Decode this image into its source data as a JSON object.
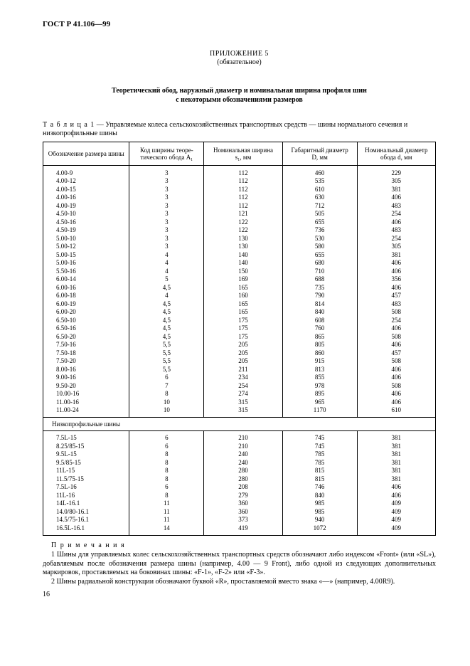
{
  "doc_id": "ГОСТ Р 41.106—99",
  "appendix_title": "ПРИЛОЖЕНИЕ 5",
  "appendix_sub": "(обязательное)",
  "main_title_l1": "Теоретический обод, наружный диаметр и номинальная ширина профиля шин",
  "main_title_l2": "с некоторыми обозначениями размеров",
  "table_label": "Т а б л и ц а  1",
  "table_caption": " — Управляемые колеса сельскохозяйственных транспортных средств — шины нормального сечения и низкопрофильные шины",
  "columns": [
    "Обозначение размера шины",
    "Код ширины теоре-\nтического обода A₁",
    "Номинальная ширина\ns₁, мм",
    "Габаритный диаметр\nD, мм",
    "Номинальный диаметр\nобода d, мм"
  ],
  "rows_top": [
    [
      "4.00-9",
      "3",
      "112",
      "460",
      "229"
    ],
    [
      "4.00-12",
      "3",
      "112",
      "535",
      "305"
    ],
    [
      "4.00-15",
      "3",
      "112",
      "610",
      "381"
    ],
    [
      "4.00-16",
      "3",
      "112",
      "630",
      "406"
    ],
    [
      "4.00-19",
      "3",
      "112",
      "712",
      "483"
    ],
    [
      "4.50-10",
      "3",
      "121",
      "505",
      "254"
    ],
    [
      "4.50-16",
      "3",
      "122",
      "655",
      "406"
    ],
    [
      "4.50-19",
      "3",
      "122",
      "736",
      "483"
    ],
    [
      "5.00-10",
      "3",
      "130",
      "530",
      "254"
    ],
    [
      "5.00-12",
      "3",
      "130",
      "580",
      "305"
    ],
    [
      "5.00-15",
      "4",
      "140",
      "655",
      "381"
    ],
    [
      "5.00-16",
      "4",
      "140",
      "680",
      "406"
    ],
    [
      "5.50-16",
      "4",
      "150",
      "710",
      "406"
    ],
    [
      "6.00-14",
      "5",
      "169",
      "688",
      "356"
    ],
    [
      "6.00-16",
      "4,5",
      "165",
      "735",
      "406"
    ],
    [
      "6.00-18",
      "4",
      "160",
      "790",
      "457"
    ],
    [
      "6.00-19",
      "4,5",
      "165",
      "814",
      "483"
    ],
    [
      "6.00-20",
      "4,5",
      "165",
      "840",
      "508"
    ],
    [
      "6.50-10",
      "4,5",
      "175",
      "608",
      "254"
    ],
    [
      "6.50-16",
      "4,5",
      "175",
      "760",
      "406"
    ],
    [
      "6.50-20",
      "4,5",
      "175",
      "865",
      "508"
    ],
    [
      "7.50-16",
      "5,5",
      "205",
      "805",
      "406"
    ],
    [
      "7.50-18",
      "5,5",
      "205",
      "860",
      "457"
    ],
    [
      "7.50-20",
      "5,5",
      "205",
      "915",
      "508"
    ],
    [
      "8.00-16",
      "5,5",
      "211",
      "813",
      "406"
    ],
    [
      "9.00-16",
      "6",
      "234",
      "855",
      "406"
    ],
    [
      "9.50-20",
      "7",
      "254",
      "978",
      "508"
    ],
    [
      "10.00-16",
      "8",
      "274",
      "895",
      "406"
    ],
    [
      "11.00-16",
      "10",
      "315",
      "965",
      "406"
    ],
    [
      "11.00-24",
      "10",
      "315",
      "1170",
      "610"
    ]
  ],
  "section_label": "Низкопрофильные шины",
  "rows_bot": [
    [
      "7.5L-15",
      "6",
      "210",
      "745",
      "381"
    ],
    [
      "8.25/85-15",
      "6",
      "210",
      "745",
      "381"
    ],
    [
      "9.5L-15",
      "8",
      "240",
      "785",
      "381"
    ],
    [
      "9.5/85-15",
      "8",
      "240",
      "785",
      "381"
    ],
    [
      "11L-15",
      "8",
      "280",
      "815",
      "381"
    ],
    [
      "11.5/75-15",
      "8",
      "280",
      "815",
      "381"
    ],
    [
      "7.5L-16",
      "6",
      "208",
      "746",
      "406"
    ],
    [
      "11L-16",
      "8",
      "279",
      "840",
      "406"
    ],
    [
      "14L-16.1",
      "11",
      "360",
      "985",
      "409"
    ],
    [
      "14.0/80-16.1",
      "11",
      "360",
      "985",
      "409"
    ],
    [
      "14.5/75-16.1",
      "11",
      "373",
      "940",
      "409"
    ],
    [
      "16.5L-16.1",
      "14",
      "419",
      "1072",
      "409"
    ]
  ],
  "notes_heading": "П р и м е ч а н и я",
  "note1": "1  Шины для управляемых колес сельскохозяйственных транспортных средств обозначают либо индексом «Front» (или «SL»), добавляемым после обозначения размера шины (например, 4.00 — 9 Front), либо одной из следующих дополнительных маркировок, проставляемых на боковинах шины: «F-1», «F-2» или «F-3».",
  "note2": "2  Шины радиальной конструкции обозначают буквой «R», проставляемой вместо знака «—» (например, 4.00R9).",
  "page_number": "16",
  "col_widths": [
    "22%",
    "19%",
    "20%",
    "19%",
    "20%"
  ]
}
